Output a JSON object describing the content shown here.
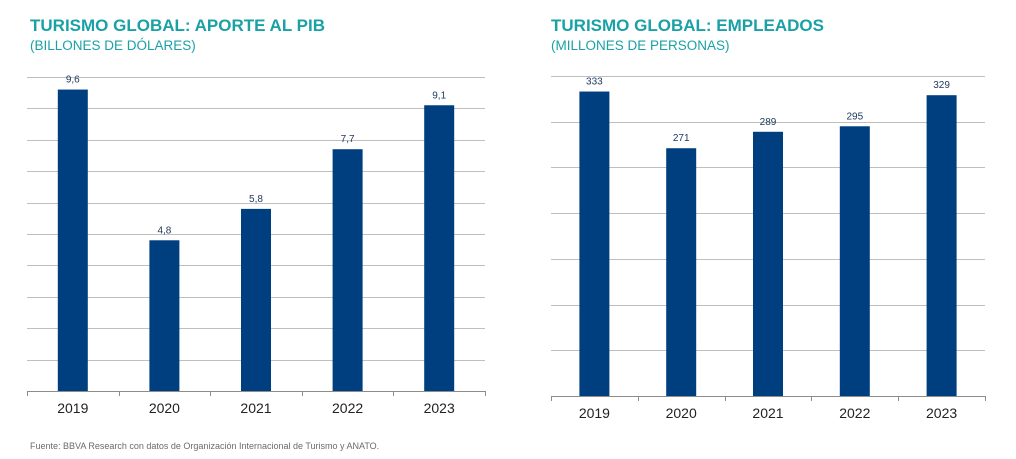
{
  "colors": {
    "title": "#1aa1a6",
    "bar": "#003f7f",
    "grid": "#bfbfbf",
    "axis": "#8c8c8c",
    "tick_text": "#222222",
    "label_text": "#1f3a60",
    "footnote": "#6b6b6b"
  },
  "footnote": "Fuente: BBVA Research con datos de Organización Internacional de Turismo y ANATO.",
  "chart_data": [
    {
      "type": "bar",
      "title": "TURISMO GLOBAL: APORTE AL PIB",
      "subtitle": "(BILLONES DE DÓLARES)",
      "categories": [
        "2019",
        "2020",
        "2021",
        "2022",
        "2023"
      ],
      "values": [
        9.6,
        4.8,
        5.8,
        7.7,
        9.1
      ],
      "value_labels": [
        "9,6",
        "4,8",
        "5,8",
        "7,7",
        "9,1"
      ],
      "ylim": [
        0,
        10
      ],
      "y_gridlines": [
        1,
        2,
        3,
        4,
        5,
        6,
        7,
        8,
        9,
        10
      ],
      "xlabel": "",
      "ylabel": "",
      "grid": true,
      "legend": "none"
    },
    {
      "type": "bar",
      "title": "TURISMO GLOBAL: EMPLEADOS",
      "subtitle": "(MILLONES DE PERSONAS)",
      "categories": [
        "2019",
        "2020",
        "2021",
        "2022",
        "2023"
      ],
      "values": [
        333,
        271,
        289,
        295,
        329
      ],
      "value_labels": [
        "333",
        "271",
        "289",
        "295",
        "329"
      ],
      "ylim": [
        0,
        350
      ],
      "y_gridlines": [
        50,
        100,
        150,
        200,
        250,
        300,
        350
      ],
      "xlabel": "",
      "ylabel": "",
      "grid": true,
      "legend": "none"
    }
  ]
}
